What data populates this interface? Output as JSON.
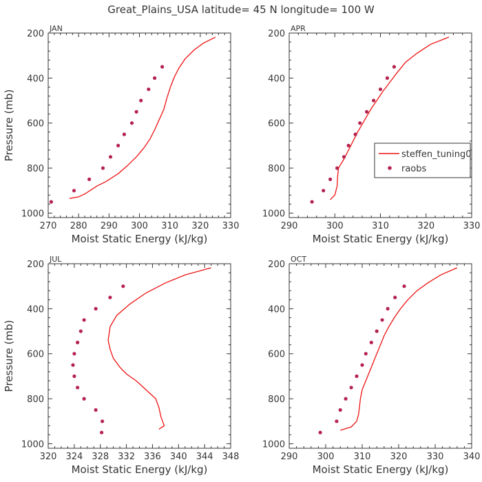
{
  "title": "Great_Plains_USA   latitude= 45 N longitude= 100 W",
  "colors": {
    "model": "#ee1111",
    "obs": "#b5234f",
    "axis": "#333333"
  },
  "legend": {
    "model_label": "steffen_tuning0",
    "obs_label": "raobs"
  },
  "chart_data": [
    {
      "type": "line",
      "title": "JAN",
      "xlabel": "Moist Static Energy (kJ/kg)",
      "ylabel": "Pressure (mb)",
      "xlim": [
        270,
        330
      ],
      "ylim": [
        1020,
        200
      ],
      "xticks": [
        270,
        280,
        290,
        300,
        310,
        320,
        330
      ],
      "yticks": [
        200,
        400,
        600,
        800,
        1000
      ],
      "series": [
        {
          "name": "steffen_tuning0",
          "kind": "line",
          "points": [
            [
              277,
              935
            ],
            [
              280,
              928
            ],
            [
              282,
              915
            ],
            [
              284,
              898
            ],
            [
              286,
              880
            ],
            [
              289,
              860
            ],
            [
              293,
              825
            ],
            [
              296,
              790
            ],
            [
              299,
              750
            ],
            [
              301.5,
              710
            ],
            [
              303.5,
              670
            ],
            [
              305,
              630
            ],
            [
              306.5,
              585
            ],
            [
              308,
              540
            ],
            [
              309,
              490
            ],
            [
              310.2,
              440
            ],
            [
              311.5,
              395
            ],
            [
              313,
              355
            ],
            [
              315,
              315
            ],
            [
              318,
              275
            ],
            [
              321,
              245
            ],
            [
              325,
              218
            ]
          ]
        },
        {
          "name": "raobs",
          "kind": "scatter",
          "points": [
            [
              271,
              950
            ],
            [
              278.5,
              900
            ],
            [
              283.5,
              850
            ],
            [
              288,
              800
            ],
            [
              290.5,
              750
            ],
            [
              293,
              700
            ],
            [
              295,
              650
            ],
            [
              297.5,
              600
            ],
            [
              299,
              550
            ],
            [
              300.5,
              500
            ],
            [
              303,
              450
            ],
            [
              305,
              400
            ],
            [
              307.5,
              350
            ]
          ]
        }
      ]
    },
    {
      "type": "line",
      "title": "APR",
      "xlabel": "Moist Static Energy (kJ/kg)",
      "ylabel": "",
      "xlim": [
        290,
        330
      ],
      "ylim": [
        1020,
        200
      ],
      "xticks": [
        290,
        300,
        310,
        320,
        330
      ],
      "yticks": [
        200,
        400,
        600,
        800,
        1000
      ],
      "series": [
        {
          "name": "steffen_tuning0",
          "kind": "line",
          "points": [
            [
              299,
              940
            ],
            [
              300,
              920
            ],
            [
              300.5,
              880
            ],
            [
              300.6,
              840
            ],
            [
              300.8,
              800
            ],
            [
              301.4,
              780
            ],
            [
              302,
              760
            ],
            [
              303,
              720
            ],
            [
              304,
              680
            ],
            [
              305,
              640
            ],
            [
              306,
              605
            ],
            [
              307,
              570
            ],
            [
              308,
              535
            ],
            [
              309.2,
              500
            ],
            [
              310.5,
              460
            ],
            [
              312,
              420
            ],
            [
              313.5,
              380
            ],
            [
              315.5,
              330
            ],
            [
              318,
              290
            ],
            [
              321,
              250
            ],
            [
              325,
              218
            ]
          ]
        },
        {
          "name": "raobs",
          "kind": "scatter",
          "points": [
            [
              295,
              950
            ],
            [
              297.5,
              900
            ],
            [
              299,
              850
            ],
            [
              300.5,
              800
            ],
            [
              302,
              750
            ],
            [
              303,
              700
            ],
            [
              304.5,
              650
            ],
            [
              305.5,
              600
            ],
            [
              307,
              550
            ],
            [
              308.5,
              500
            ],
            [
              310,
              450
            ],
            [
              311.5,
              400
            ],
            [
              313,
              350
            ]
          ]
        }
      ]
    },
    {
      "type": "line",
      "title": "JUL",
      "xlabel": "Moist Static Energy (kJ/kg)",
      "ylabel": "Pressure (mb)",
      "xlim": [
        320,
        348
      ],
      "ylim": [
        1020,
        200
      ],
      "xticks": [
        320,
        324,
        328,
        332,
        336,
        340,
        344,
        348
      ],
      "yticks": [
        200,
        400,
        600,
        800,
        1000
      ],
      "series": [
        {
          "name": "steffen_tuning0",
          "kind": "line",
          "points": [
            [
              337,
              935
            ],
            [
              337.8,
              920
            ],
            [
              337.3,
              880
            ],
            [
              337,
              840
            ],
            [
              336.5,
              800
            ],
            [
              335,
              760
            ],
            [
              333.5,
              720
            ],
            [
              332,
              690
            ],
            [
              331,
              660
            ],
            [
              330,
              620
            ],
            [
              329.5,
              580
            ],
            [
              329.2,
              540
            ],
            [
              329.5,
              480
            ],
            [
              330.5,
              430
            ],
            [
              332.5,
              380
            ],
            [
              335,
              330
            ],
            [
              338,
              285
            ],
            [
              341,
              250
            ],
            [
              345,
              218
            ]
          ]
        },
        {
          "name": "raobs",
          "kind": "scatter",
          "points": [
            [
              328.2,
              950
            ],
            [
              328.3,
              900
            ],
            [
              327.3,
              850
            ],
            [
              325.5,
              800
            ],
            [
              324.5,
              750
            ],
            [
              324,
              700
            ],
            [
              323.8,
              650
            ],
            [
              324,
              600
            ],
            [
              324.5,
              550
            ],
            [
              325,
              500
            ],
            [
              325.5,
              450
            ],
            [
              327.3,
              400
            ],
            [
              329.5,
              350
            ],
            [
              331.5,
              300
            ]
          ]
        }
      ]
    },
    {
      "type": "line",
      "title": "OCT",
      "xlabel": "Moist Static Energy (kJ/kg)",
      "ylabel": "",
      "xlim": [
        290,
        340
      ],
      "ylim": [
        1020,
        200
      ],
      "xticks": [
        290,
        300,
        310,
        320,
        330,
        340
      ],
      "yticks": [
        200,
        400,
        600,
        800,
        1000
      ],
      "series": [
        {
          "name": "steffen_tuning0",
          "kind": "line",
          "points": [
            [
              304,
              940
            ],
            [
              307,
              925
            ],
            [
              308.5,
              900
            ],
            [
              309,
              870
            ],
            [
              309.3,
              830
            ],
            [
              309.5,
              800
            ],
            [
              310,
              760
            ],
            [
              311,
              720
            ],
            [
              312,
              680
            ],
            [
              313,
              640
            ],
            [
              314,
              600
            ],
            [
              315,
              560
            ],
            [
              316,
              520
            ],
            [
              317.3,
              480
            ],
            [
              318.8,
              440
            ],
            [
              320.5,
              400
            ],
            [
              322.5,
              360
            ],
            [
              325,
              320
            ],
            [
              328,
              285
            ],
            [
              331.5,
              250
            ],
            [
              336,
              218
            ]
          ]
        },
        {
          "name": "raobs",
          "kind": "scatter",
          "points": [
            [
              298.5,
              950
            ],
            [
              303,
              900
            ],
            [
              304,
              850
            ],
            [
              305.5,
              800
            ],
            [
              307,
              750
            ],
            [
              308.5,
              700
            ],
            [
              310,
              650
            ],
            [
              311,
              600
            ],
            [
              312.5,
              550
            ],
            [
              314,
              500
            ],
            [
              315.5,
              450
            ],
            [
              317,
              400
            ],
            [
              319,
              350
            ],
            [
              321.5,
              300
            ]
          ]
        }
      ]
    }
  ]
}
